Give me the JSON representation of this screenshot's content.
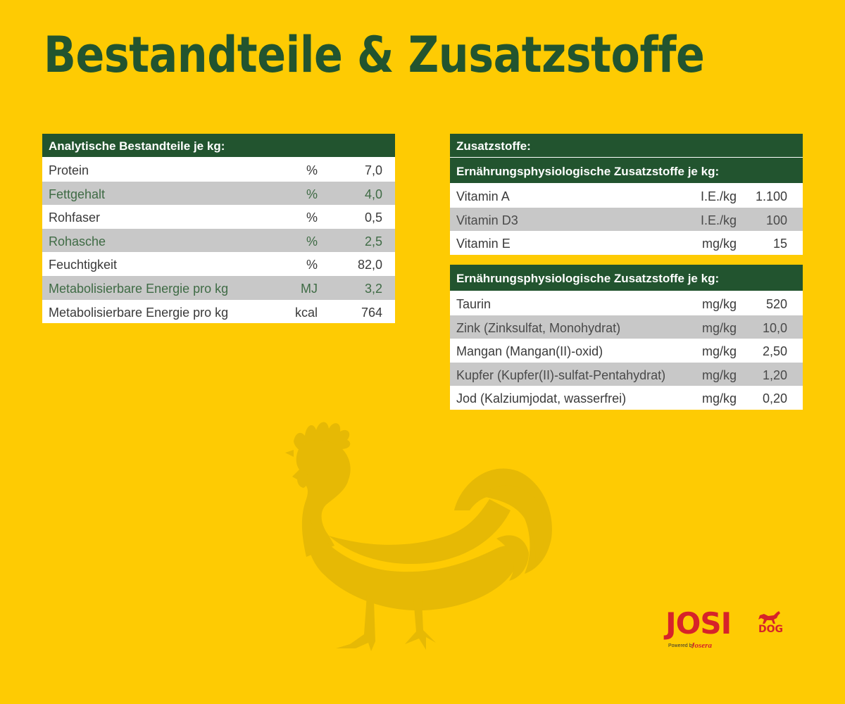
{
  "title": "Bestandteile & Zusatzstoffe",
  "analytic": {
    "header": "Analytische Bestandteile je kg:",
    "rows": [
      {
        "name": "Protein",
        "unit": "%",
        "value": "7,0"
      },
      {
        "name": "Fettgehalt",
        "unit": "%",
        "value": "4,0"
      },
      {
        "name": "Rohfaser",
        "unit": "%",
        "value": "0,5"
      },
      {
        "name": "Rohasche",
        "unit": "%",
        "value": "2,5"
      },
      {
        "name": "Feuchtigkeit",
        "unit": "%",
        "value": "82,0"
      },
      {
        "name": "Metabolisierbare Energie pro kg",
        "unit": "MJ",
        "value": "3,2"
      },
      {
        "name": "Metabolisierbare Energie pro kg",
        "unit": "kcal",
        "value": "764"
      }
    ]
  },
  "additives": {
    "header": "Zusatzstoffe:",
    "nutri1": {
      "header": "Ernährungsphysiologische Zusatzstoffe je kg:",
      "rows": [
        {
          "name": "Vitamin A",
          "unit": "I.E./kg",
          "value": "1.100"
        },
        {
          "name": "Vitamin D3",
          "unit": "I.E./kg",
          "value": "100"
        },
        {
          "name": "Vitamin E",
          "unit": "mg/kg",
          "value": "15"
        }
      ]
    },
    "nutri2": {
      "header": "Ernährungsphysiologische Zusatzstoffe je kg:",
      "rows": [
        {
          "name": "Taurin",
          "unit": "mg/kg",
          "value": "520"
        },
        {
          "name": "Zink (Zinksulfat, Monohydrat)",
          "unit": "mg/kg",
          "value": "10,0"
        },
        {
          "name": "Mangan (Mangan(II)-oxid)",
          "unit": "mg/kg",
          "value": "2,50"
        },
        {
          "name": "Kupfer (Kupfer(II)-sulfat-Pentahydrat)",
          "unit": "mg/kg",
          "value": "1,20"
        },
        {
          "name": "Jod (Kalziumjodat, wasserfrei)",
          "unit": "mg/kg",
          "value": "0,20"
        }
      ]
    }
  },
  "logo": {
    "main": "JOSI",
    "dog": "DOG",
    "powered": "Powered by",
    "brand": "Josera",
    "icon": "dog-icon"
  },
  "decor": {
    "icon": "rooster-icon"
  },
  "colors": {
    "background": "#fecb03",
    "header": "#22542f",
    "alt_row": "#c8c8c8",
    "logo_red": "#d6232a"
  }
}
